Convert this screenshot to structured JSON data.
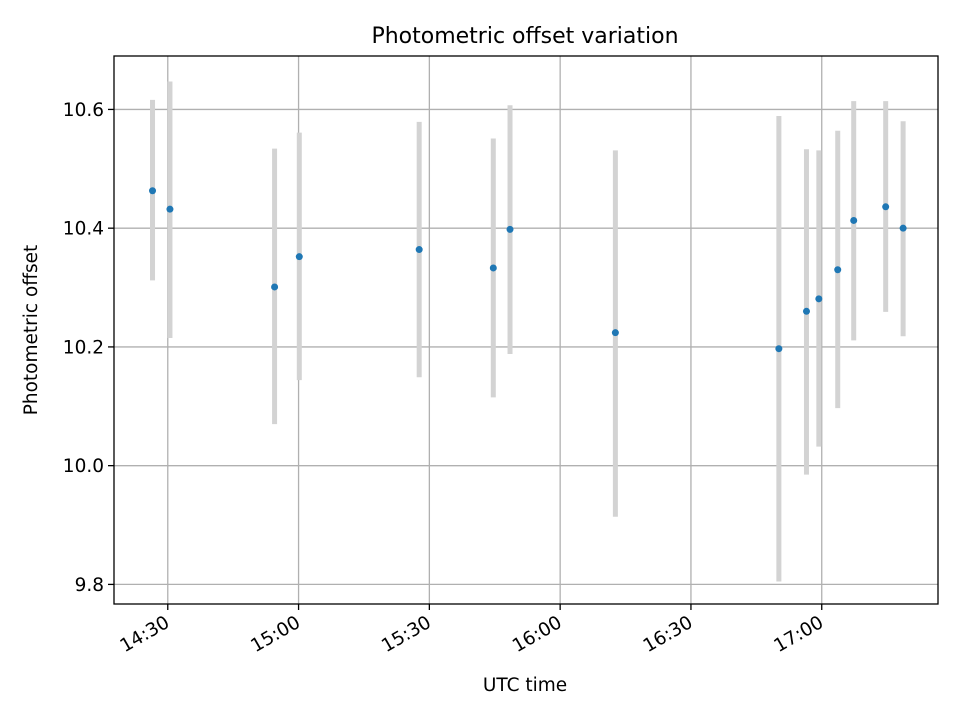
{
  "chart_data": {
    "type": "scatter",
    "title": "Photometric offset variation",
    "xlabel": "UTC time",
    "ylabel": "Photometric offset",
    "xlim": [
      "14:17:40",
      "17:26:40"
    ],
    "ylim": [
      9.767,
      10.69
    ],
    "grid": true,
    "x_ticks": [
      "14:30",
      "15:00",
      "15:30",
      "16:00",
      "16:30",
      "17:00"
    ],
    "y_ticks": [
      "9.8",
      "10.0",
      "10.2",
      "10.4",
      "10.6"
    ],
    "errorbar_color": "#d3d3d3",
    "marker_color": "#1f77b4",
    "points": [
      {
        "time": "14:26:30",
        "y": 10.463,
        "lo": 10.312,
        "hi": 10.616
      },
      {
        "time": "14:30:30",
        "y": 10.432,
        "lo": 10.215,
        "hi": 10.647
      },
      {
        "time": "14:54:30",
        "y": 10.301,
        "lo": 10.07,
        "hi": 10.534
      },
      {
        "time": "15:00:10",
        "y": 10.352,
        "lo": 10.144,
        "hi": 10.561
      },
      {
        "time": "15:27:40",
        "y": 10.364,
        "lo": 10.149,
        "hi": 10.579
      },
      {
        "time": "15:44:40",
        "y": 10.333,
        "lo": 10.115,
        "hi": 10.551
      },
      {
        "time": "15:48:30",
        "y": 10.398,
        "lo": 10.188,
        "hi": 10.607
      },
      {
        "time": "16:12:40",
        "y": 10.224,
        "lo": 9.914,
        "hi": 10.531
      },
      {
        "time": "16:50:10",
        "y": 10.197,
        "lo": 9.805,
        "hi": 10.589
      },
      {
        "time": "16:56:30",
        "y": 10.26,
        "lo": 9.985,
        "hi": 10.533
      },
      {
        "time": "16:59:20",
        "y": 10.281,
        "lo": 10.032,
        "hi": 10.531
      },
      {
        "time": "17:03:40",
        "y": 10.33,
        "lo": 10.097,
        "hi": 10.564
      },
      {
        "time": "17:07:20",
        "y": 10.413,
        "lo": 10.211,
        "hi": 10.614
      },
      {
        "time": "17:14:40",
        "y": 10.436,
        "lo": 10.259,
        "hi": 10.614
      },
      {
        "time": "17:18:40",
        "y": 10.4,
        "lo": 10.218,
        "hi": 10.58
      }
    ]
  }
}
